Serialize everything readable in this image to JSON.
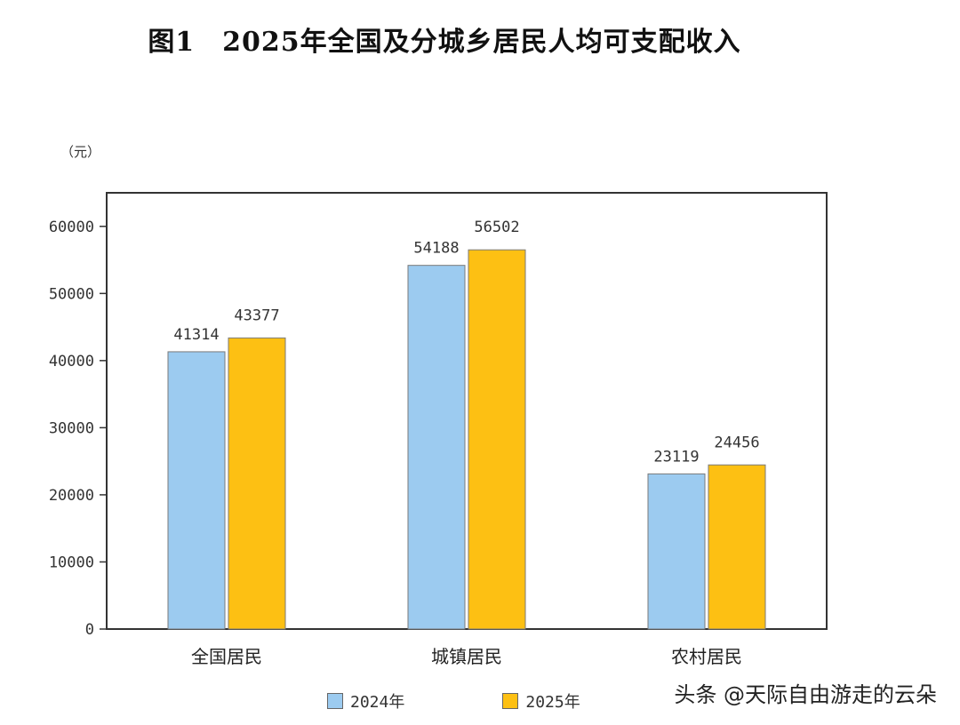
{
  "chart_data": {
    "type": "bar",
    "title": "图1　2025年全国及分城乡居民人均可支配收入",
    "unit": "（元）",
    "categories": [
      "全国居民",
      "城镇居民",
      "农村居民"
    ],
    "series": [
      {
        "name": "2024年",
        "values": [
          41314,
          54188,
          23119
        ],
        "color": "#9ccbf0"
      },
      {
        "name": "2025年",
        "values": [
          43377,
          56502,
          24456
        ],
        "color": "#fdc013"
      }
    ],
    "ylim": [
      0,
      65000
    ],
    "yticks": [
      "0",
      "10000",
      "20000",
      "30000",
      "40000",
      "50000",
      "60000"
    ],
    "grid": false,
    "legend_position": "bottom"
  },
  "watermark": "头条 @天际自由游走的云朵",
  "colors": {
    "bar_border": "#7a7a7a",
    "axis": "#333333"
  }
}
